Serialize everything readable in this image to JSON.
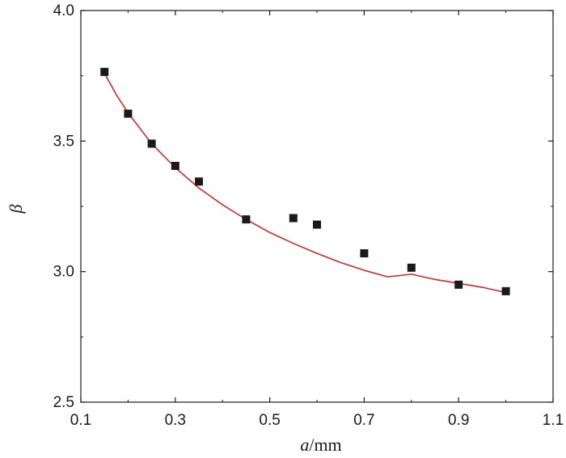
{
  "chart_data": {
    "type": "scatter",
    "xlabel_var": "a",
    "xlabel_unit": "/mm",
    "ylabel": "β",
    "xlim": [
      0.1,
      1.1
    ],
    "ylim": [
      2.5,
      4.0
    ],
    "x_ticks": [
      "0.1",
      "0.3",
      "0.5",
      "0.7",
      "0.9",
      "1.1"
    ],
    "y_ticks": [
      "2.5",
      "3.0",
      "3.5",
      "4.0"
    ],
    "grid": false,
    "series": [
      {
        "kind": "points",
        "marker": "square",
        "color": "#1a1a1a",
        "x": [
          0.15,
          0.2,
          0.25,
          0.3,
          0.35,
          0.45,
          0.55,
          0.6,
          0.7,
          0.8,
          0.9,
          1.0
        ],
        "y": [
          3.765,
          3.605,
          3.49,
          3.405,
          3.345,
          3.2,
          3.205,
          3.18,
          3.07,
          3.015,
          2.95,
          2.925
        ]
      },
      {
        "kind": "fit-curve",
        "color": "#d62728",
        "x": [
          0.15,
          0.175,
          0.2,
          0.25,
          0.3,
          0.35,
          0.4,
          0.45,
          0.5,
          0.55,
          0.6,
          0.65,
          0.7,
          0.75,
          0.8,
          0.85,
          0.9,
          0.95,
          1.0
        ],
        "y": [
          3.76,
          3.678,
          3.608,
          3.49,
          3.398,
          3.32,
          3.256,
          3.2,
          3.15,
          3.108,
          3.07,
          3.035,
          3.005,
          2.98,
          2.99,
          2.97,
          2.955,
          2.94,
          2.92
        ]
      }
    ]
  }
}
